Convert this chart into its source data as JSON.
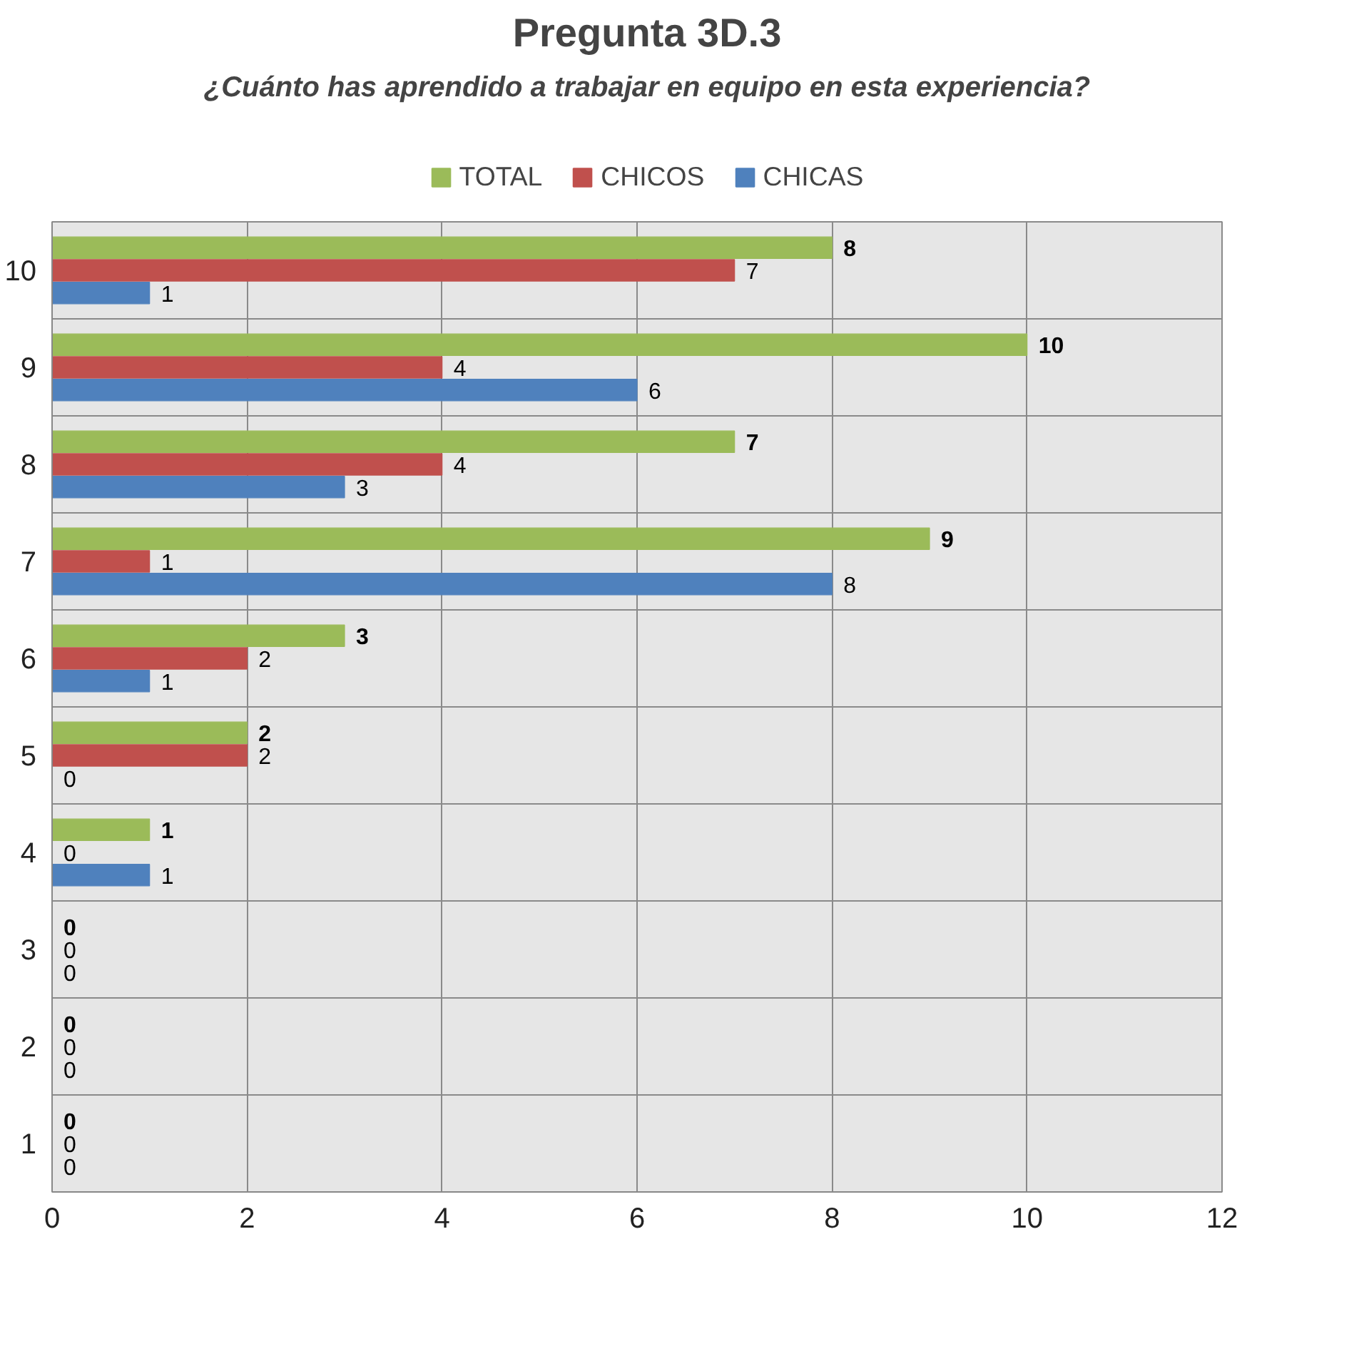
{
  "chart_data": {
    "type": "bar",
    "orientation": "horizontal",
    "title": "Pregunta 3D.3",
    "subtitle": "¿Cuánto has aprendido a trabajar en equipo en esta experiencia?",
    "categories": [
      "10",
      "9",
      "8",
      "7",
      "6",
      "5",
      "4",
      "3",
      "2",
      "1"
    ],
    "series": [
      {
        "name": "TOTAL",
        "color": "#9bbb59",
        "values": [
          8,
          10,
          7,
          9,
          3,
          2,
          1,
          0,
          0,
          0
        ]
      },
      {
        "name": "CHICOS",
        "color": "#c0504d",
        "values": [
          7,
          4,
          4,
          1,
          2,
          2,
          0,
          0,
          0,
          0
        ]
      },
      {
        "name": "CHICAS",
        "color": "#4f81bd",
        "values": [
          1,
          6,
          3,
          8,
          1,
          0,
          1,
          0,
          0,
          0
        ]
      }
    ],
    "xlim": [
      0,
      12
    ],
    "xticks": [
      0,
      2,
      4,
      6,
      8,
      10,
      12
    ],
    "grid": true,
    "legend": "top",
    "data_labels": true
  }
}
